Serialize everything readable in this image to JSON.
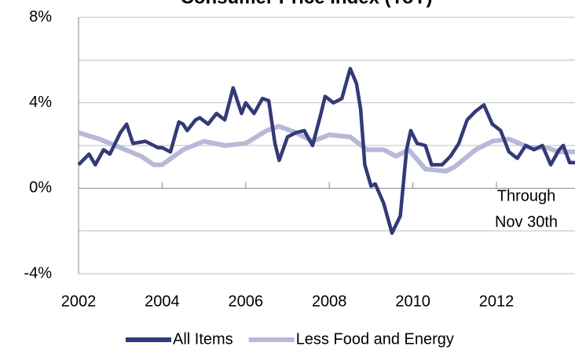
{
  "chart_data": {
    "type": "line",
    "title": "Consumer Price Index (YoY)",
    "annotation": [
      "Through",
      "Nov 30th"
    ],
    "legend": "bottom",
    "xlim": [
      2002,
      2013.88
    ],
    "xticks": [
      2002,
      2004,
      2006,
      2008,
      2010,
      2012
    ],
    "ylim": [
      -4,
      8
    ],
    "yticks": [
      {
        "value": -4,
        "label": "-4%"
      },
      {
        "value": 0,
        "label": "0%"
      },
      {
        "value": 4,
        "label": "4%"
      },
      {
        "value": 8,
        "label": "8%"
      }
    ],
    "minor_yticks": [
      -2,
      2,
      6
    ],
    "grid": true,
    "series": [
      {
        "name": "All Items",
        "color": "#333a78",
        "x": [
          2002.0,
          2002.25,
          2002.4,
          2002.6,
          2002.75,
          2003.0,
          2003.15,
          2003.3,
          2003.6,
          2003.9,
          2004.0,
          2004.2,
          2004.4,
          2004.5,
          2004.6,
          2004.8,
          2004.9,
          2005.1,
          2005.3,
          2005.5,
          2005.7,
          2005.9,
          2006.0,
          2006.2,
          2006.4,
          2006.55,
          2006.7,
          2006.8,
          2007.0,
          2007.2,
          2007.4,
          2007.6,
          2007.8,
          2007.9,
          2008.1,
          2008.3,
          2008.5,
          2008.65,
          2008.75,
          2008.85,
          2009.0,
          2009.1,
          2009.3,
          2009.5,
          2009.7,
          2009.85,
          2009.95,
          2010.1,
          2010.3,
          2010.45,
          2010.7,
          2010.9,
          2011.1,
          2011.3,
          2011.5,
          2011.7,
          2011.9,
          2012.1,
          2012.3,
          2012.5,
          2012.7,
          2012.9,
          2013.1,
          2013.3,
          2013.5,
          2013.6,
          2013.75,
          2013.88
        ],
        "values": [
          1.1,
          1.6,
          1.1,
          1.8,
          1.6,
          2.6,
          3.0,
          2.1,
          2.2,
          1.9,
          1.9,
          1.7,
          3.1,
          3.0,
          2.7,
          3.2,
          3.3,
          3.0,
          3.5,
          3.2,
          4.7,
          3.5,
          4.0,
          3.5,
          4.2,
          4.1,
          2.1,
          1.3,
          2.4,
          2.6,
          2.7,
          2.0,
          3.5,
          4.3,
          4.0,
          4.2,
          5.6,
          4.9,
          3.7,
          1.1,
          0.1,
          0.2,
          -0.7,
          -2.1,
          -1.3,
          1.8,
          2.7,
          2.1,
          2.0,
          1.1,
          1.1,
          1.5,
          2.1,
          3.2,
          3.6,
          3.9,
          3.0,
          2.7,
          1.7,
          1.4,
          2.0,
          1.8,
          2.0,
          1.1,
          1.8,
          2.0,
          1.2,
          1.2
        ]
      },
      {
        "name": "Less Food and Energy",
        "color": "#b8b8d8",
        "x": [
          2002.0,
          2002.5,
          2003.0,
          2003.5,
          2003.8,
          2004.0,
          2004.5,
          2005.0,
          2005.5,
          2006.0,
          2006.5,
          2006.8,
          2007.2,
          2007.6,
          2008.0,
          2008.5,
          2008.9,
          2009.3,
          2009.6,
          2009.9,
          2010.3,
          2010.8,
          2011.0,
          2011.5,
          2011.9,
          2012.3,
          2012.8,
          2013.2,
          2013.5,
          2013.88
        ],
        "values": [
          2.6,
          2.3,
          1.9,
          1.5,
          1.1,
          1.1,
          1.8,
          2.2,
          2.0,
          2.1,
          2.7,
          2.9,
          2.6,
          2.2,
          2.5,
          2.4,
          1.8,
          1.8,
          1.5,
          1.8,
          0.9,
          0.8,
          1.0,
          1.8,
          2.2,
          2.3,
          1.9,
          1.9,
          1.7,
          1.7
        ]
      }
    ]
  }
}
